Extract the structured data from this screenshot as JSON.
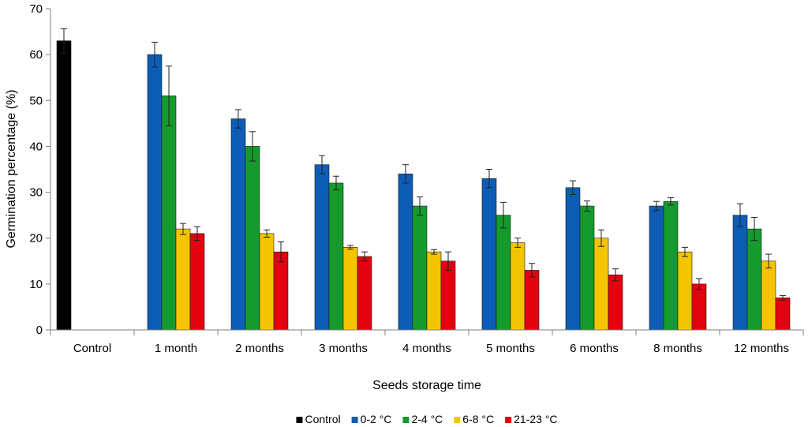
{
  "chart_data": {
    "type": "bar",
    "xlabel": "Seeds storage time",
    "ylabel": "Germination percentage (%)",
    "ylim": [
      0,
      70
    ],
    "yticks": [
      0,
      10,
      20,
      30,
      40,
      50,
      60,
      70
    ],
    "grid": false,
    "legend_position": "bottom",
    "categories": [
      "Control",
      "1 month",
      "2 months",
      "3 months",
      "4 months",
      "5 months",
      "6 months",
      "8 months",
      "12 months"
    ],
    "series": [
      {
        "name": "Control",
        "color": "#000000",
        "values": [
          63,
          null,
          null,
          null,
          null,
          null,
          null,
          null,
          null
        ],
        "errors": [
          2.6,
          null,
          null,
          null,
          null,
          null,
          null,
          null,
          null
        ]
      },
      {
        "name": "0-2 °C",
        "color": "#0d5cb6",
        "values": [
          null,
          60,
          46,
          36,
          34,
          33,
          31,
          27,
          25
        ],
        "errors": [
          null,
          2.7,
          2,
          2,
          2,
          2,
          1.5,
          1,
          2.5
        ]
      },
      {
        "name": "2-4 °C",
        "color": "#159a2e",
        "values": [
          null,
          51,
          40,
          32,
          27,
          25,
          27,
          28,
          22
        ],
        "errors": [
          null,
          6.5,
          3.2,
          1.5,
          2,
          2.8,
          1.1,
          0.8,
          2.5
        ]
      },
      {
        "name": "6-8 °C",
        "color": "#f5c400",
        "values": [
          null,
          22,
          21,
          18,
          17,
          19,
          20,
          17,
          15
        ],
        "errors": [
          null,
          1.2,
          0.8,
          0.4,
          0.5,
          1,
          1.8,
          1,
          1.5
        ]
      },
      {
        "name": "21-23 °C",
        "color": "#e3000f",
        "values": [
          null,
          21,
          17,
          16,
          15,
          13,
          12,
          10,
          7
        ],
        "errors": [
          null,
          1.5,
          2.2,
          1,
          2,
          1.5,
          1.3,
          1.2,
          0.5
        ]
      }
    ]
  }
}
